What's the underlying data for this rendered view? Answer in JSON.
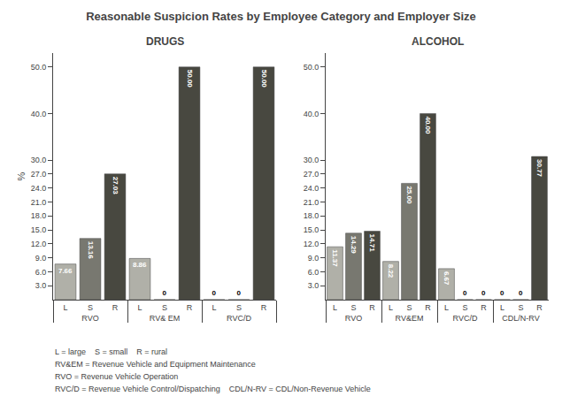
{
  "chart_data": [
    {
      "type": "bar",
      "title": "Reasonable Suspicion Rates by Employee Category and Employer Size",
      "subtitle": "DRUGS",
      "ylabel": "%",
      "categories": [
        "RVO",
        "RV& EM",
        "RVC/D"
      ],
      "series": [
        {
          "name": "L",
          "color": "#b0b0a8",
          "values": [
            7.66,
            8.86,
            0
          ],
          "value_labels": [
            "7.66",
            "8.86",
            "0"
          ]
        },
        {
          "name": "S",
          "color": "#787870",
          "values": [
            13.16,
            0,
            0
          ],
          "value_labels": [
            "13.16",
            "0",
            "0"
          ]
        },
        {
          "name": "R",
          "color": "#484840",
          "values": [
            27.03,
            50,
            50
          ],
          "value_labels": [
            "27.03",
            "50.00",
            "50.00"
          ]
        }
      ],
      "ylim": [
        0,
        53
      ],
      "yticks": [
        {
          "value": 3,
          "label": "3.0"
        },
        {
          "value": 6,
          "label": "6.0"
        },
        {
          "value": 9,
          "label": "9.0"
        },
        {
          "value": 12,
          "label": "12.0"
        },
        {
          "value": 15,
          "label": "15.0"
        },
        {
          "value": 18,
          "label": "18.0"
        },
        {
          "value": 21,
          "label": "21.0"
        },
        {
          "value": 24,
          "label": "24.0"
        },
        {
          "value": 27,
          "label": "27.0"
        },
        {
          "value": 30,
          "label": "30.0"
        },
        {
          "value": 40,
          "label": "40.0"
        },
        {
          "value": 50,
          "label": "50.0"
        }
      ],
      "grid": false,
      "data_labels": true,
      "annotations": [
        "L = large    S = small    R = rural",
        "RV&EM = Revenue Vehicle and Equipment Maintenance",
        "RVO = Revenue Vehicle Operation",
        "RVC/D = Revenue Vehicle Control/Dispatching    CDL/N-RV = CDL/Non-Revenue Vehicle"
      ]
    },
    {
      "type": "bar",
      "subtitle": "ALCOHOL",
      "categories": [
        "RVO",
        "RV&EM",
        "RVC/D",
        "CDL/N-RV"
      ],
      "series": [
        {
          "name": "L",
          "color": "#b0b0a8",
          "values": [
            11.37,
            8.22,
            6.67,
            0
          ],
          "value_labels": [
            "11.37",
            "8.22",
            "6.67",
            "0"
          ]
        },
        {
          "name": "S",
          "color": "#787870",
          "values": [
            14.29,
            25,
            0,
            0
          ],
          "value_labels": [
            "14.29",
            "25.00",
            "0",
            "0"
          ]
        },
        {
          "name": "R",
          "color": "#484840",
          "values": [
            14.71,
            40,
            0,
            30.77
          ],
          "value_labels": [
            "14.71",
            "40.00",
            "0",
            "30.77"
          ]
        }
      ],
      "ylim": [
        0,
        53
      ],
      "yticks": [
        {
          "value": 3,
          "label": "3.0"
        },
        {
          "value": 6,
          "label": "6.0"
        },
        {
          "value": 9,
          "label": "9.0"
        },
        {
          "value": 12,
          "label": "12.0"
        },
        {
          "value": 15,
          "label": "15.0"
        },
        {
          "value": 18,
          "label": "18.0"
        },
        {
          "value": 21,
          "label": "21.0"
        },
        {
          "value": 24,
          "label": "24.0"
        },
        {
          "value": 27,
          "label": "27.0"
        },
        {
          "value": 30,
          "label": "30.0"
        },
        {
          "value": 40,
          "label": "40.0"
        },
        {
          "value": 50,
          "label": "50.0"
        }
      ],
      "grid": false,
      "data_labels": true
    }
  ]
}
